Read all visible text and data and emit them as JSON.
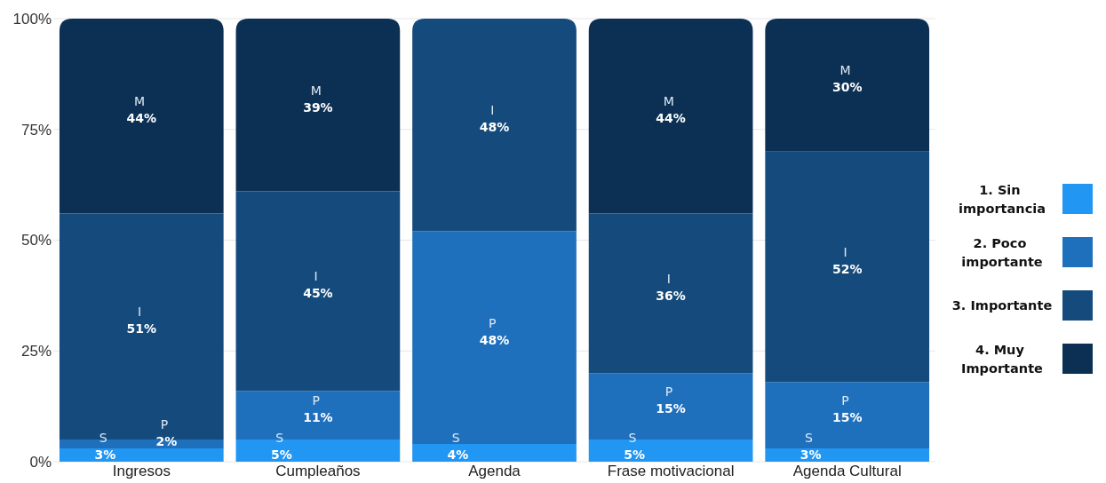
{
  "chart_data": {
    "type": "bar",
    "stacked": true,
    "categories": [
      "Ingresos",
      "Cumpleaños",
      "Agenda",
      "Frase motivacional",
      "Agenda Cultural"
    ],
    "series": [
      {
        "name": "1. Sin importancia",
        "color": "#2196f3",
        "values": [
          3,
          5,
          4,
          5,
          3
        ],
        "value_labels": [
          "S 3%",
          "S 5%",
          "S 4%",
          "S 5%",
          "S 3%"
        ]
      },
      {
        "name": "2. Poco importante",
        "color": "#1e70bd",
        "values": [
          2,
          11,
          48,
          15,
          15
        ],
        "value_labels": [
          "P 2%",
          "P 11%",
          "P 48%",
          "P 15%",
          "P 15%"
        ]
      },
      {
        "name": "3. Importante",
        "color": "#144b7c",
        "values": [
          51,
          45,
          48,
          36,
          52
        ],
        "value_labels": [
          "I 51%",
          "I 45%",
          "I 48%",
          "I 36%",
          "I 52%"
        ]
      },
      {
        "name": "4. Muy Importante",
        "color": "#0c3054",
        "values": [
          44,
          39,
          null,
          44,
          30
        ],
        "value_labels": [
          "M 44%",
          "M 39%",
          null,
          "M 44%",
          "M 30%"
        ]
      }
    ],
    "ylim": [
      0,
      100
    ],
    "yticks": [
      {
        "value": 0,
        "label": "0%"
      },
      {
        "value": 25,
        "label": "25%"
      },
      {
        "value": 50,
        "label": "50%"
      },
      {
        "value": 75,
        "label": "75%"
      },
      {
        "value": 100,
        "label": "100%"
      }
    ],
    "grid": "y",
    "legend": "right"
  }
}
